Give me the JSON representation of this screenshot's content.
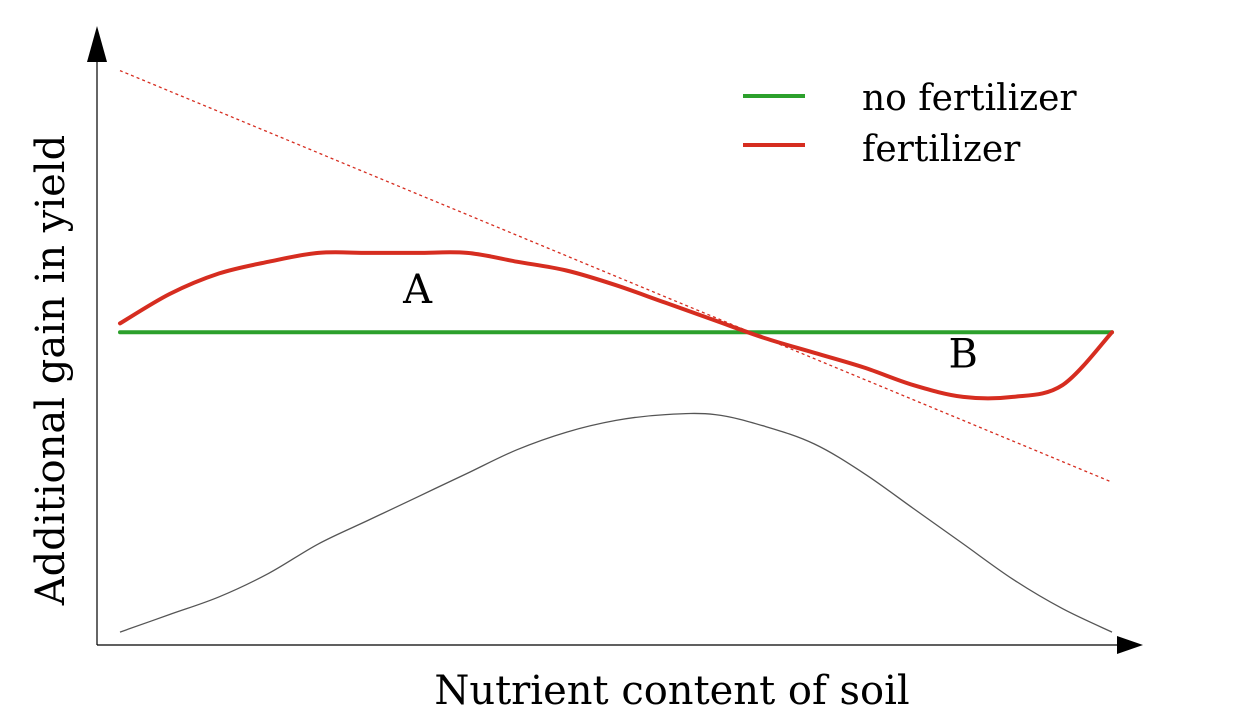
{
  "chart_data": {
    "type": "line",
    "xlabel": "Nutrient content of soil",
    "ylabel": "Additional gain in yield",
    "grid": false,
    "legend_placement": "top-right",
    "x": [
      0,
      0.05,
      0.1,
      0.15,
      0.2,
      0.25,
      0.3,
      0.35,
      0.4,
      0.45,
      0.5,
      0.55,
      0.6,
      0.65,
      0.7,
      0.75,
      0.8,
      0.85,
      0.9,
      0.95,
      1.0
    ],
    "series": [
      {
        "name": "no fertilizer",
        "color": "#2ca02c",
        "values": [
          0.52,
          0.52,
          0.52,
          0.52,
          0.52,
          0.52,
          0.52,
          0.52,
          0.52,
          0.52,
          0.52,
          0.52,
          0.52,
          0.52,
          0.52,
          0.52,
          0.52,
          0.52,
          0.52,
          0.52,
          0.52
        ]
      },
      {
        "name": "fertilizer",
        "color": "#d62d20",
        "values": [
          0.535,
          0.585,
          0.62,
          0.64,
          0.655,
          0.655,
          0.655,
          0.655,
          0.64,
          0.625,
          0.6,
          0.57,
          0.54,
          0.51,
          0.485,
          0.46,
          0.43,
          0.41,
          0.41,
          0.43,
          0.52
        ]
      }
    ],
    "curves": [
      {
        "role": "trend",
        "color": "#d62d20",
        "style": "dotted",
        "values": [
          0.965,
          0.93,
          0.895,
          0.86,
          0.825,
          0.79,
          0.755,
          0.72,
          0.685,
          0.65,
          0.615,
          0.58,
          0.545,
          0.51,
          0.475,
          0.44,
          0.405,
          0.37,
          0.335,
          0.3,
          0.265
        ]
      },
      {
        "role": "distribution",
        "color": "#555555",
        "style": "solid",
        "values": [
          0.01,
          0.04,
          0.07,
          0.11,
          0.16,
          0.2,
          0.24,
          0.28,
          0.32,
          0.35,
          0.37,
          0.38,
          0.38,
          0.36,
          0.33,
          0.28,
          0.22,
          0.16,
          0.1,
          0.05,
          0.01
        ]
      }
    ],
    "annotations": [
      {
        "text": "A",
        "x": 0.3,
        "y": 0.57
      },
      {
        "text": "B",
        "x": 0.85,
        "y": 0.46
      }
    ]
  }
}
